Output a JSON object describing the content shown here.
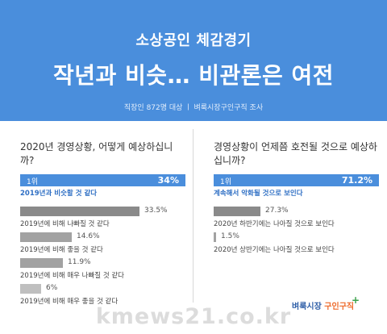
{
  "header": {
    "subtitle": "소상공인 체감경기",
    "title": "작년과 비슷…  비관론은 여전",
    "note": "직장인 872명 대상  ㅣ  벼룩시장구인구직 조사"
  },
  "watermark": "kmews21.co.kr",
  "logo": {
    "text_a": "벼룩시장",
    "text_b": " 구인구직",
    "plus": "+"
  },
  "colors": {
    "accent": "#4a8edc",
    "bar_dark": "#8a8a8a",
    "bar_mid": "#a2a2a2",
    "bar_light": "#bfbfbf"
  },
  "chart_data": [
    {
      "type": "bar",
      "title": "2020년 경영상황, 어떻게 예상하십니까?",
      "rank_label": "1위",
      "unit": "%",
      "max_percent": 34,
      "categories": [
        "2019년과 비슷할 것 같다",
        "2019년에 비해 나빠질 것 같다",
        "2019년에 비해 좋을 것 같다",
        "2019년에 비해 매우 나빠질 것 같다",
        "2019년에 비해 매우 좋을 것 같다"
      ],
      "values": [
        34,
        33.5,
        14.6,
        11.9,
        6
      ],
      "value_labels": [
        "34%",
        "33.5%",
        "14.6%",
        "11.9%",
        "6%"
      ]
    },
    {
      "type": "bar",
      "title": "경영상황이 언제쯤 호전될 것으로 예상하십니까?",
      "rank_label": "1위",
      "unit": "%",
      "max_percent": 71.2,
      "categories": [
        "계속해서 악화될 것으로 보인다",
        "2020년 하반기에는 나아질 것으로 보인다",
        "2020년 상반기에는 나아질 것으로 보인다"
      ],
      "values": [
        71.2,
        27.3,
        1.5
      ],
      "value_labels": [
        "71.2%",
        "27.3%",
        "1.5%"
      ]
    }
  ]
}
